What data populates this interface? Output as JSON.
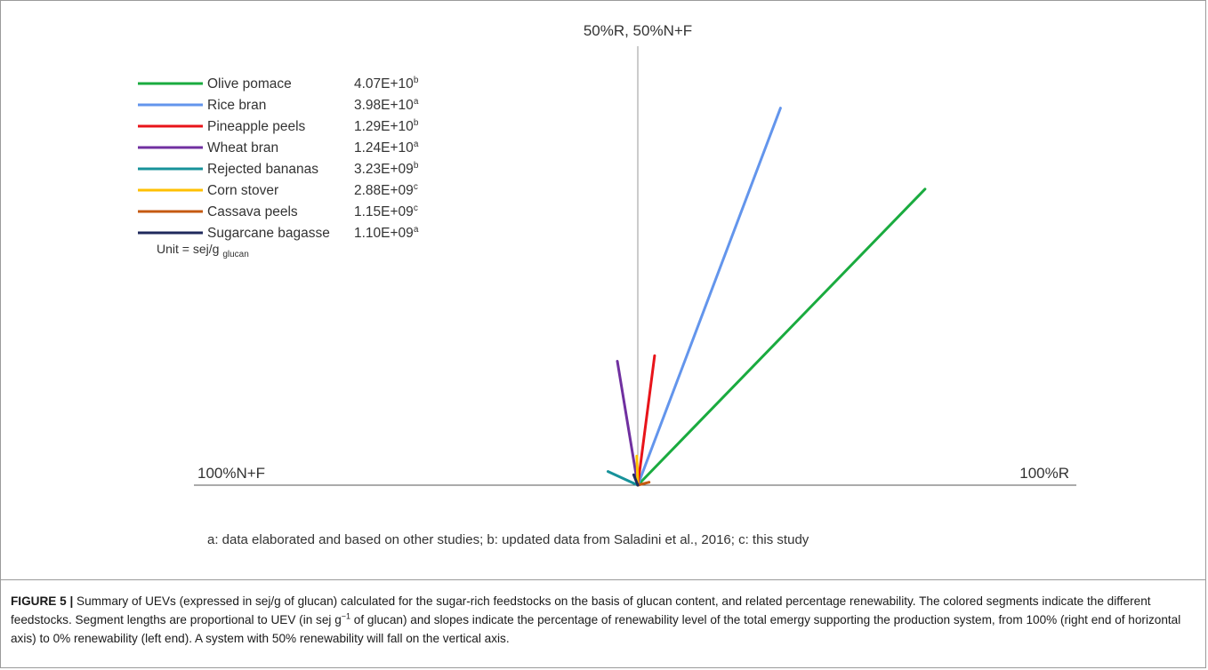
{
  "chart_data": {
    "type": "line",
    "axes": {
      "top_label": "50%R, 50%N+F",
      "left_label": "100%N+F",
      "right_label": "100%R"
    },
    "series": [
      {
        "name": "Olive pomace",
        "uev": "4.07E+10",
        "sup": "b",
        "color": "#1aab3f",
        "renewability_pct": 74.5,
        "length": 4.07
      },
      {
        "name": "Rice bran",
        "uev": "3.98E+10",
        "sup": "a",
        "color": "#6395ec",
        "renewability_pct": 61.5,
        "length": 3.98
      },
      {
        "name": "Pineapple peels",
        "uev": "1.29E+10",
        "sup": "b",
        "color": "#e8141a",
        "renewability_pct": 54.1,
        "length": 1.29
      },
      {
        "name": "Wheat bran",
        "uev": "1.24E+10",
        "sup": "a",
        "color": "#7030a0",
        "renewability_pct": 44.8,
        "length": 1.24
      },
      {
        "name": "Rejected bananas",
        "uev": "3.23E+09",
        "sup": "b",
        "color": "#17929a",
        "renewability_pct": 13.7,
        "length": 0.323
      },
      {
        "name": "Corn stover",
        "uev": "2.88E+09",
        "sup": "c",
        "color": "#ffc000",
        "renewability_pct": 48.9,
        "length": 0.288
      },
      {
        "name": "Cassava peels",
        "uev": "1.15E+09",
        "sup": "c",
        "color": "#c55a11",
        "renewability_pct": 92.0,
        "length": 0.115
      },
      {
        "name": "Sugarcane bagasse",
        "uev": "1.10E+09",
        "sup": "a",
        "color": "#1f2a5c",
        "renewability_pct": 38.0,
        "length": 0.11
      }
    ],
    "unit_label": "Unit = sej/g",
    "unit_sub": "glucan",
    "footnote": "a: data elaborated and based on other studies; b: updated data from Saladini et al., 2016; c: this study"
  },
  "caption": {
    "label": "FIGURE 5 |",
    "text_1": " Summary of UEVs (expressed in sej/g of glucan) calculated for the sugar-rich feedstocks on the basis of glucan content, and related percentage renewability. The colored segments indicate the different feedstocks. Segment lengths are proportional to UEV (in sej g",
    "superscript": "−1",
    "text_2": " of glucan) and slopes indicate the percentage of renewability level of the total emergy supporting the production system, from 100% (right end of horizontal axis) to 0% renewability (left end). A system with 50% renewability will fall on the vertical axis."
  }
}
